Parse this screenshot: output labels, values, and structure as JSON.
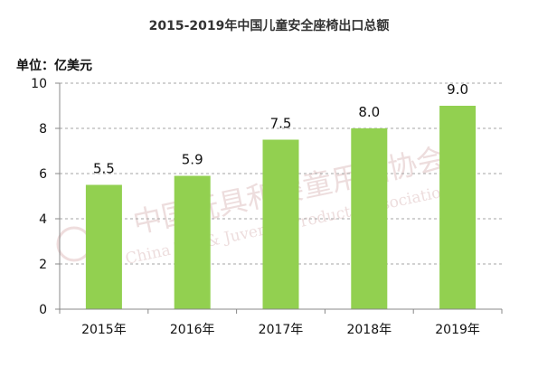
{
  "unit_label": "单位：亿美元",
  "colors": {
    "bar": "#92d050",
    "grid": "#a6a6a6",
    "axis": "#888888"
  },
  "chart_data": {
    "type": "bar",
    "title": "2015-2019年中国儿童安全座椅出口总额",
    "xlabel": "",
    "ylabel": "单位：亿美元",
    "categories": [
      "2015年",
      "2016年",
      "2017年",
      "2018年",
      "2019年"
    ],
    "values": [
      5.5,
      5.9,
      7.5,
      8.0,
      9.0
    ],
    "value_labels": [
      "5.5",
      "5.9",
      "7.5",
      "8.0",
      "9.0"
    ],
    "ylim": [
      0,
      10
    ],
    "yticks": [
      0,
      2,
      4,
      6,
      8,
      10
    ],
    "grid": true,
    "legend": "none"
  }
}
